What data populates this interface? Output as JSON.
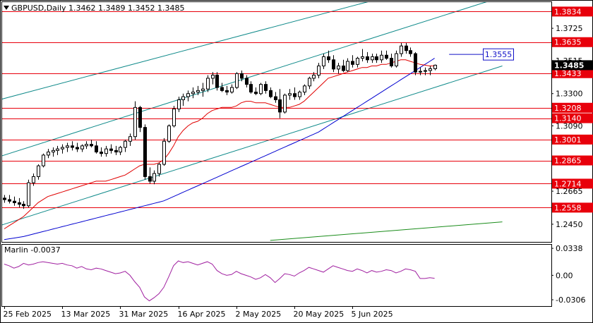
{
  "window": {
    "symbol_line": "GBPUSD,Daily  1.3462 1.3489 1.3452 1.3485",
    "marker_icon": "triangle-down-icon"
  },
  "colors": {
    "level_line": "#e8000b",
    "level_label_bg": "#e8000b",
    "bid_label_bg": "#000000",
    "target_label": "#1010c8",
    "ma_fast": "#e00000",
    "ma_slow": "#0000d0",
    "channel_inner": "#0f8a8a",
    "channel_outer": "#1a8c1a",
    "oscillator": "#a020a0",
    "candle_outline": "#000000"
  },
  "chart_data": [
    {
      "type": "candlestick",
      "title": "GBPUSD,Daily  1.3462 1.3489 1.3452 1.3485",
      "y_range": [
        1.2335,
        1.39
      ],
      "x_labels": [
        "25 Feb 2025",
        "13 Mar 2025",
        "31 Mar 2025",
        "16 Apr 2025",
        "2 May 2025",
        "20 May 2025",
        "5 Jun 2025"
      ],
      "y_tick_labels": [
        "1.3834",
        "1.3725",
        "1.3635",
        "1.3515",
        "1.3433",
        "1.3300",
        "1.3208",
        "1.3140",
        "1.3090",
        "1.3001",
        "1.2865",
        "1.2714",
        "1.2665",
        "1.2558",
        "1.2450"
      ],
      "current_price": "1.3485",
      "levels": [
        "1.3834",
        "1.3635",
        "1.3433",
        "1.3208",
        "1.3140",
        "1.3001",
        "1.2865",
        "1.2714",
        "1.2558"
      ],
      "target_label": "1.3555",
      "candles": [
        [
          1.262,
          1.264,
          1.259,
          1.261
        ],
        [
          1.261,
          1.264,
          1.2585,
          1.26
        ],
        [
          1.26,
          1.263,
          1.257,
          1.259
        ],
        [
          1.259,
          1.262,
          1.256,
          1.258
        ],
        [
          1.258,
          1.26,
          1.255,
          1.257
        ],
        [
          1.257,
          1.274,
          1.256,
          1.272
        ],
        [
          1.272,
          1.278,
          1.27,
          1.276
        ],
        [
          1.276,
          1.284,
          1.274,
          1.283
        ],
        [
          1.283,
          1.291,
          1.282,
          1.29
        ],
        [
          1.29,
          1.294,
          1.288,
          1.292
        ],
        [
          1.292,
          1.295,
          1.289,
          1.293
        ],
        [
          1.293,
          1.296,
          1.29,
          1.294
        ],
        [
          1.294,
          1.297,
          1.291,
          1.295
        ],
        [
          1.295,
          1.298,
          1.292,
          1.296
        ],
        [
          1.296,
          1.299,
          1.293,
          1.295
        ],
        [
          1.295,
          1.298,
          1.292,
          1.294
        ],
        [
          1.294,
          1.297,
          1.292,
          1.296
        ],
        [
          1.296,
          1.299,
          1.294,
          1.297
        ],
        [
          1.297,
          1.3,
          1.295,
          1.296
        ],
        [
          1.296,
          1.299,
          1.291,
          1.292
        ],
        [
          1.292,
          1.295,
          1.289,
          1.291
        ],
        [
          1.291,
          1.296,
          1.289,
          1.294
        ],
        [
          1.294,
          1.297,
          1.291,
          1.293
        ],
        [
          1.293,
          1.296,
          1.29,
          1.292
        ],
        [
          1.292,
          1.296,
          1.29,
          1.295
        ],
        [
          1.295,
          1.3,
          1.292,
          1.299
        ],
        [
          1.299,
          1.304,
          1.296,
          1.302
        ],
        [
          1.302,
          1.325,
          1.3,
          1.321
        ],
        [
          1.321,
          1.322,
          1.305,
          1.308
        ],
        [
          1.308,
          1.31,
          1.274,
          1.276
        ],
        [
          1.276,
          1.282,
          1.2714,
          1.273
        ],
        [
          1.273,
          1.28,
          1.271,
          1.278
        ],
        [
          1.278,
          1.285,
          1.276,
          1.284
        ],
        [
          1.284,
          1.301,
          1.283,
          1.299
        ],
        [
          1.299,
          1.31,
          1.298,
          1.309
        ],
        [
          1.309,
          1.322,
          1.308,
          1.32
        ],
        [
          1.32,
          1.328,
          1.318,
          1.326
        ],
        [
          1.326,
          1.33,
          1.322,
          1.328
        ],
        [
          1.328,
          1.332,
          1.325,
          1.33
        ],
        [
          1.33,
          1.334,
          1.327,
          1.331
        ],
        [
          1.331,
          1.335,
          1.329,
          1.332
        ],
        [
          1.332,
          1.337,
          1.328,
          1.333
        ],
        [
          1.333,
          1.342,
          1.331,
          1.34
        ],
        [
          1.34,
          1.344,
          1.336,
          1.342
        ],
        [
          1.342,
          1.344,
          1.332,
          1.334
        ],
        [
          1.334,
          1.337,
          1.331,
          1.332
        ],
        [
          1.332,
          1.335,
          1.329,
          1.331
        ],
        [
          1.331,
          1.336,
          1.33,
          1.334
        ],
        [
          1.334,
          1.344,
          1.333,
          1.343
        ],
        [
          1.343,
          1.345,
          1.338,
          1.34
        ],
        [
          1.34,
          1.342,
          1.334,
          1.336
        ],
        [
          1.336,
          1.338,
          1.33,
          1.331
        ],
        [
          1.331,
          1.334,
          1.329,
          1.33
        ],
        [
          1.33,
          1.337,
          1.329,
          1.336
        ],
        [
          1.336,
          1.338,
          1.33,
          1.332
        ],
        [
          1.332,
          1.334,
          1.327,
          1.328
        ],
        [
          1.328,
          1.331,
          1.324,
          1.326
        ],
        [
          1.326,
          1.333,
          1.314,
          1.318
        ],
        [
          1.318,
          1.33,
          1.317,
          1.329
        ],
        [
          1.329,
          1.333,
          1.326,
          1.33
        ],
        [
          1.33,
          1.334,
          1.326,
          1.328
        ],
        [
          1.328,
          1.332,
          1.326,
          1.331
        ],
        [
          1.331,
          1.336,
          1.329,
          1.335
        ],
        [
          1.335,
          1.341,
          1.333,
          1.34
        ],
        [
          1.34,
          1.344,
          1.338,
          1.342
        ],
        [
          1.342,
          1.35,
          1.34,
          1.348
        ],
        [
          1.348,
          1.356,
          1.346,
          1.354
        ],
        [
          1.354,
          1.358,
          1.35,
          1.352
        ],
        [
          1.352,
          1.355,
          1.344,
          1.346
        ],
        [
          1.346,
          1.35,
          1.343,
          1.348
        ],
        [
          1.348,
          1.352,
          1.344,
          1.345
        ],
        [
          1.345,
          1.353,
          1.344,
          1.351
        ],
        [
          1.351,
          1.355,
          1.347,
          1.349
        ],
        [
          1.349,
          1.354,
          1.347,
          1.353
        ],
        [
          1.353,
          1.359,
          1.351,
          1.354
        ],
        [
          1.354,
          1.357,
          1.35,
          1.352
        ],
        [
          1.352,
          1.356,
          1.35,
          1.354
        ],
        [
          1.354,
          1.356,
          1.35,
          1.352
        ],
        [
          1.352,
          1.358,
          1.35,
          1.355
        ],
        [
          1.355,
          1.358,
          1.352,
          1.353
        ],
        [
          1.353,
          1.356,
          1.347,
          1.348
        ],
        [
          1.348,
          1.358,
          1.347,
          1.356
        ],
        [
          1.356,
          1.363,
          1.354,
          1.361
        ],
        [
          1.361,
          1.363,
          1.356,
          1.358
        ],
        [
          1.358,
          1.36,
          1.354,
          1.356
        ],
        [
          1.356,
          1.357,
          1.342,
          1.344
        ],
        [
          1.344,
          1.347,
          1.342,
          1.3445
        ],
        [
          1.3445,
          1.347,
          1.342,
          1.345
        ],
        [
          1.345,
          1.348,
          1.342,
          1.3462
        ],
        [
          1.3462,
          1.3489,
          1.3452,
          1.3485
        ]
      ],
      "ma_fast": [
        1.242,
        1.244,
        1.246,
        1.248,
        1.25,
        1.253,
        1.256,
        1.259,
        1.261,
        1.263,
        1.264,
        1.265,
        1.266,
        1.267,
        1.268,
        1.269,
        1.27,
        1.271,
        1.272,
        1.273,
        1.273,
        1.273,
        1.274,
        1.275,
        1.276,
        1.277,
        1.279,
        1.281,
        1.283,
        1.284,
        1.284,
        1.284,
        1.285,
        1.287,
        1.291,
        1.296,
        1.302,
        1.306,
        1.309,
        1.311,
        1.312,
        1.314,
        1.317,
        1.319,
        1.32,
        1.321,
        1.321,
        1.321,
        1.322,
        1.324,
        1.325,
        1.325,
        1.324,
        1.324,
        1.324,
        1.323,
        1.322,
        1.321,
        1.321,
        1.321,
        1.322,
        1.323,
        1.325,
        1.328,
        1.331,
        1.334,
        1.337,
        1.34,
        1.341,
        1.342,
        1.343,
        1.344,
        1.345,
        1.346,
        1.347,
        1.347,
        1.348,
        1.348,
        1.349,
        1.349,
        1.35,
        1.351,
        1.352,
        1.352,
        1.351,
        1.35,
        1.349,
        1.3485,
        1.348,
        1.348
      ],
      "ma_slow": [
        1.235,
        1.2355,
        1.236,
        1.2365,
        1.237,
        1.2378,
        1.2386,
        1.2394,
        1.2402,
        1.241,
        1.2418,
        1.2426,
        1.2434,
        1.2442,
        1.245,
        1.2458,
        1.2466,
        1.2474,
        1.2482,
        1.249,
        1.2498,
        1.2506,
        1.2514,
        1.2522,
        1.253,
        1.2538,
        1.2546,
        1.2554,
        1.2562,
        1.257,
        1.2578,
        1.2586,
        1.2594,
        1.2602,
        1.2616,
        1.263,
        1.2644,
        1.2658,
        1.2672,
        1.2686,
        1.27,
        1.2714,
        1.2728,
        1.2742,
        1.2756,
        1.277,
        1.2784,
        1.2798,
        1.2812,
        1.2826,
        1.284,
        1.2854,
        1.2868,
        1.2882,
        1.2896,
        1.291,
        1.2924,
        1.2938,
        1.2952,
        1.2966,
        1.298,
        1.2994,
        1.3008,
        1.3022,
        1.3036,
        1.305,
        1.307,
        1.309,
        1.311,
        1.313,
        1.315,
        1.317,
        1.319,
        1.321,
        1.323,
        1.325,
        1.327,
        1.329,
        1.331,
        1.333,
        1.335,
        1.337,
        1.339,
        1.341,
        1.343,
        1.345,
        1.347,
        1.349,
        1.351,
        1.353
      ],
      "channel_lines": [
        {
          "from": [
            -1,
            1.289
          ],
          "to": [
            103,
            1.393
          ]
        },
        {
          "from": [
            -1,
            1.244
          ],
          "to": [
            103,
            1.348
          ]
        },
        {
          "from": [
            -1,
            1.326
          ],
          "to": [
            103,
            1.413
          ]
        },
        {
          "from": [
            -1,
            1.39
          ],
          "to": [
            103,
            1.3985
          ]
        },
        {
          "from": [
            55,
            1.2345
          ],
          "to": [
            103,
            1.2465
          ]
        }
      ]
    },
    {
      "type": "line",
      "title": "Marlin -0.0037",
      "y_range": [
        -0.0385,
        0.0392
      ],
      "y_tick_labels": [
        "0.0338",
        "0.00",
        "-0.0306"
      ],
      "values": [
        0.014,
        0.012,
        0.009,
        0.011,
        0.015,
        0.013,
        0.014,
        0.016,
        0.017,
        0.016,
        0.015,
        0.014,
        0.015,
        0.013,
        0.012,
        0.009,
        0.011,
        0.008,
        0.007,
        0.009,
        0.008,
        0.006,
        0.004,
        0.002,
        0.003,
        0.005,
        0.0,
        -0.008,
        -0.015,
        -0.027,
        -0.032,
        -0.028,
        -0.023,
        -0.015,
        -0.002,
        0.012,
        0.018,
        0.016,
        0.017,
        0.015,
        0.013,
        0.015,
        0.017,
        0.014,
        0.006,
        0.002,
        0.0,
        0.001,
        0.005,
        0.002,
        0.0,
        -0.002,
        -0.005,
        -0.003,
        0.001,
        -0.003,
        -0.009,
        -0.004,
        0.002,
        0.001,
        -0.001,
        0.003,
        0.006,
        0.01,
        0.008,
        0.006,
        0.004,
        0.008,
        0.012,
        0.01,
        0.008,
        0.006,
        0.005,
        0.008,
        0.006,
        0.003,
        0.006,
        0.004,
        0.005,
        0.007,
        0.006,
        0.003,
        0.005,
        0.008,
        0.007,
        0.005,
        -0.004,
        -0.004,
        -0.003,
        -0.0037
      ]
    }
  ]
}
